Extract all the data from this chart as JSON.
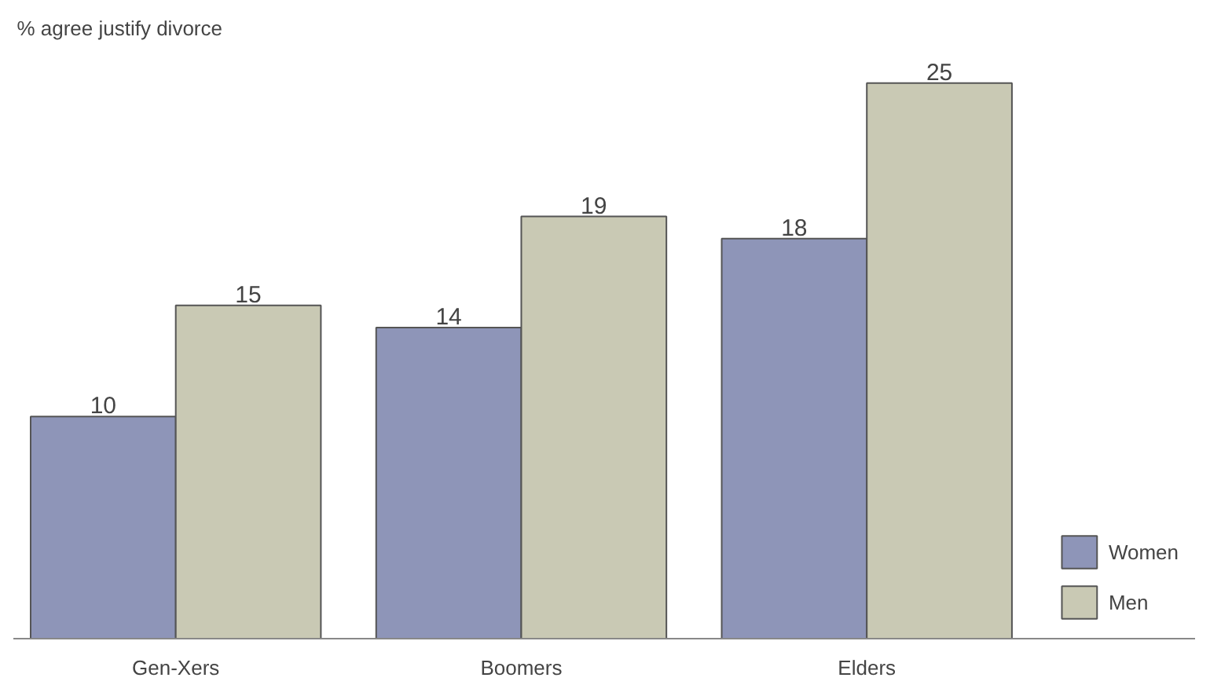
{
  "chart_data": {
    "type": "bar",
    "ylabel": "% agree justify divorce",
    "categories": [
      "Gen-Xers",
      "Boomers",
      "Elders"
    ],
    "series": [
      {
        "name": "Women",
        "color": "#8e95b8",
        "values": [
          10,
          14,
          18
        ]
      },
      {
        "name": "Men",
        "color": "#c9c9b4",
        "values": [
          15,
          19,
          25
        ]
      }
    ],
    "data_labels": true,
    "legend": "bottom right",
    "grid": false
  }
}
